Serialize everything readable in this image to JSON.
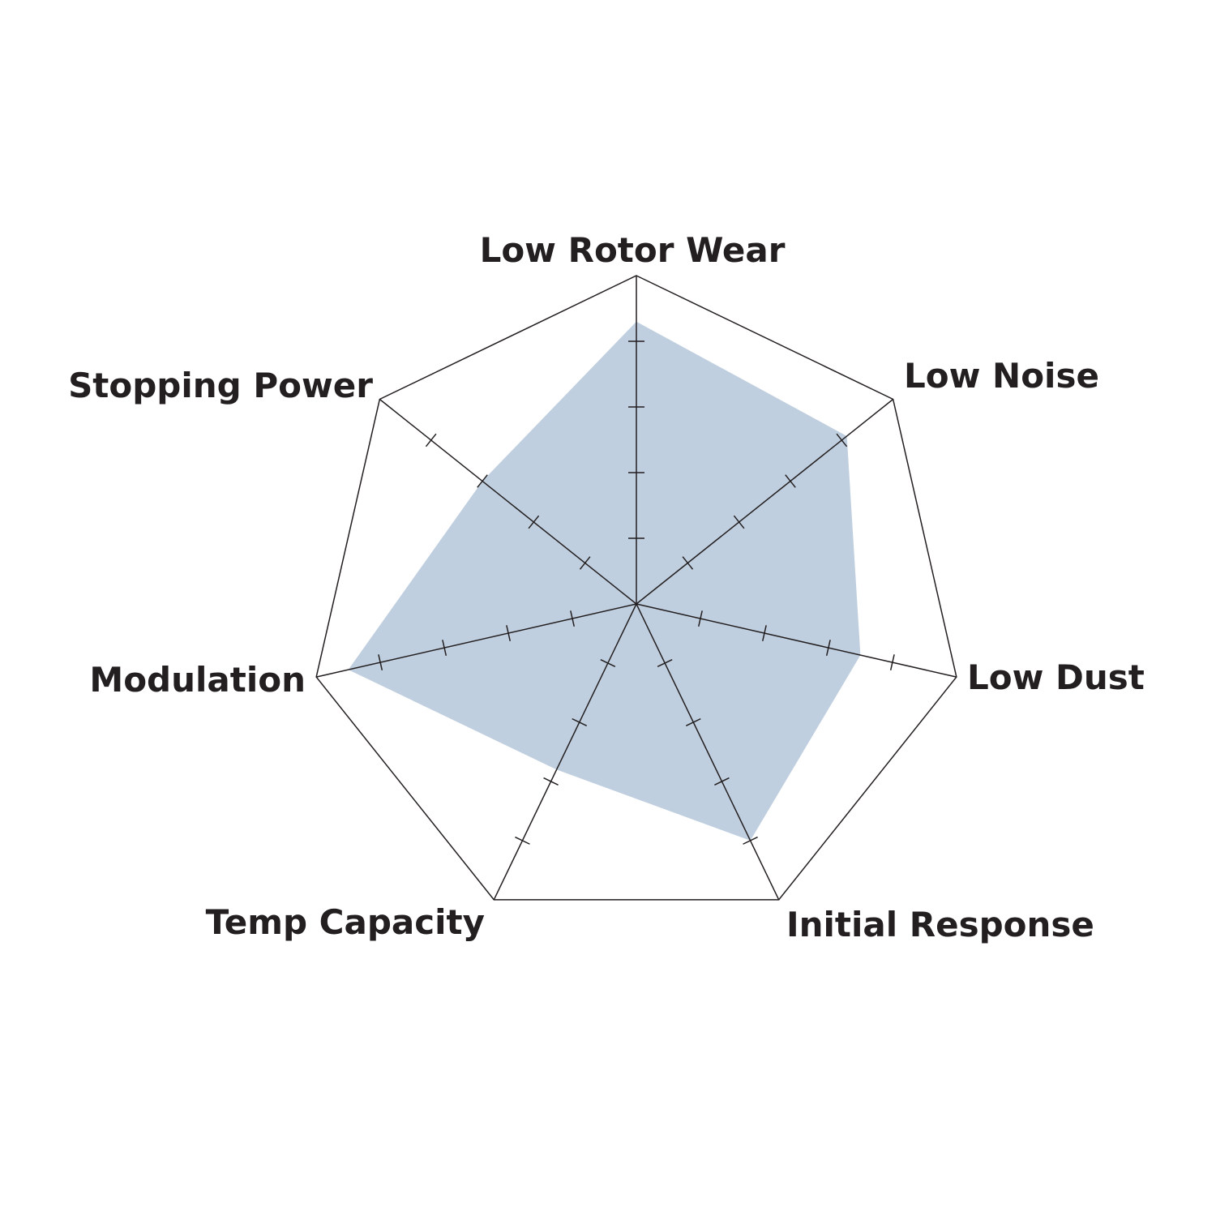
{
  "chart_data": {
    "type": "radar",
    "axes": [
      "Low Rotor Wear",
      "Low Noise",
      "Low Dust",
      "Initial Response",
      "Temp Capacity",
      "Modulation",
      "Stopping Power"
    ],
    "values": [
      4.3,
      4.1,
      3.5,
      4.0,
      2.8,
      4.5,
      3.0
    ],
    "rlim": [
      0,
      5
    ],
    "ticks": [
      1,
      2,
      3,
      4
    ],
    "fill_color": "#c0cfdf",
    "line_color": "#231f20",
    "grid": false
  }
}
